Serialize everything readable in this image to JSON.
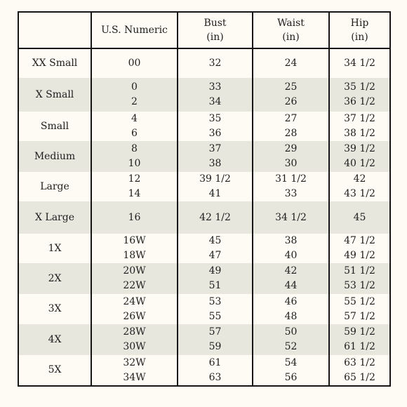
{
  "headers": [
    {
      "line1": "",
      "line2": ""
    },
    {
      "line1": "U.S. Numeric",
      "line2": ""
    },
    {
      "line1": "Bust",
      "line2": "(in)"
    },
    {
      "line1": "Waist",
      "line2": "(in)"
    },
    {
      "line1": "Hip",
      "line2": "(in)"
    }
  ],
  "rows": [
    {
      "size": "XX Small",
      "numeric": [
        "00"
      ],
      "bust": [
        "32"
      ],
      "waist": [
        "24"
      ],
      "hip": [
        "34 1/2"
      ]
    },
    {
      "size": "X Small",
      "numeric": [
        "0",
        "2"
      ],
      "bust": [
        "33",
        "34"
      ],
      "waist": [
        "25",
        "26"
      ],
      "hip": [
        "35 1/2",
        "36 1/2"
      ]
    },
    {
      "size": "Small",
      "numeric": [
        "4",
        "6"
      ],
      "bust": [
        "35",
        "36"
      ],
      "waist": [
        "27",
        "28"
      ],
      "hip": [
        "37 1/2",
        "38 1/2"
      ]
    },
    {
      "size": "Medium",
      "numeric": [
        "8",
        "10"
      ],
      "bust": [
        "37",
        "38"
      ],
      "waist": [
        "29",
        "30"
      ],
      "hip": [
        "39 1/2",
        "40 1/2"
      ]
    },
    {
      "size": "Large",
      "numeric": [
        "12",
        "14"
      ],
      "bust": [
        "39 1/2",
        "41"
      ],
      "waist": [
        "31 1/2",
        "33"
      ],
      "hip": [
        "42",
        "43 1/2"
      ]
    },
    {
      "size": "X Large",
      "numeric": [
        "16"
      ],
      "bust": [
        "42 1/2"
      ],
      "waist": [
        "34 1/2"
      ],
      "hip": [
        "45"
      ]
    },
    {
      "size": "1X",
      "numeric": [
        "16W",
        "18W"
      ],
      "bust": [
        "45",
        "47"
      ],
      "waist": [
        "38",
        "40"
      ],
      "hip": [
        "47 1/2",
        "49 1/2"
      ]
    },
    {
      "size": "2X",
      "numeric": [
        "20W",
        "22W"
      ],
      "bust": [
        "49",
        "51"
      ],
      "waist": [
        "42",
        "44"
      ],
      "hip": [
        "51 1/2",
        "53 1/2"
      ]
    },
    {
      "size": "3X",
      "numeric": [
        "24W",
        "26W"
      ],
      "bust": [
        "53",
        "55"
      ],
      "waist": [
        "46",
        "48"
      ],
      "hip": [
        "55 1/2",
        "57 1/2"
      ]
    },
    {
      "size": "4X",
      "numeric": [
        "28W",
        "30W"
      ],
      "bust": [
        "57",
        "59"
      ],
      "waist": [
        "50",
        "52"
      ],
      "hip": [
        "59 1/2",
        "61 1/2"
      ]
    },
    {
      "size": "5X",
      "numeric": [
        "32W",
        "34W"
      ],
      "bust": [
        "61",
        "63"
      ],
      "waist": [
        "54",
        "56"
      ],
      "hip": [
        "63 1/2",
        "65 1/2"
      ]
    }
  ],
  "colors": {
    "background": "#fdfbf4",
    "shaded_row": "#e8e7de",
    "rule": "#161616"
  }
}
